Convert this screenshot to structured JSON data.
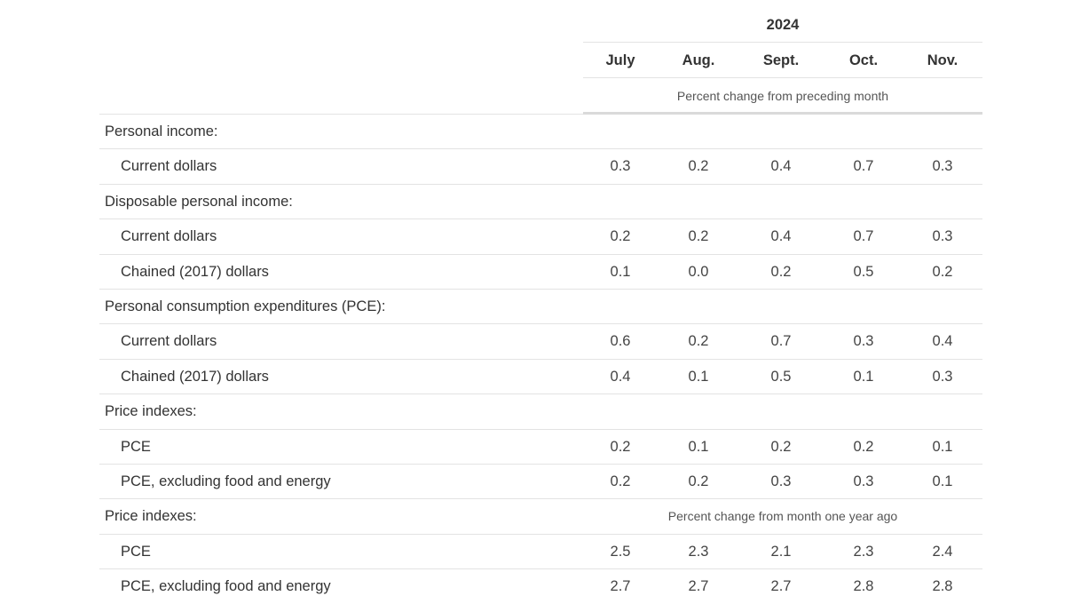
{
  "header": {
    "year": "2024",
    "months": [
      "July",
      "Aug.",
      "Sept.",
      "Oct.",
      "Nov."
    ],
    "note_monthly": "Percent change from preceding month",
    "note_yoy": "Percent change from month one year ago"
  },
  "rows": [
    {
      "label": "Personal income:",
      "values": []
    },
    {
      "label": "Current dollars",
      "values": [
        "0.3",
        "0.2",
        "0.4",
        "0.7",
        "0.3"
      ]
    },
    {
      "label": "Disposable personal income:",
      "values": []
    },
    {
      "label": "Current dollars",
      "values": [
        "0.2",
        "0.2",
        "0.4",
        "0.7",
        "0.3"
      ]
    },
    {
      "label": "Chained (2017) dollars",
      "values": [
        "0.1",
        "0.0",
        "0.2",
        "0.5",
        "0.2"
      ]
    },
    {
      "label": "Personal consumption expenditures (PCE):",
      "values": []
    },
    {
      "label": "Current dollars",
      "values": [
        "0.6",
        "0.2",
        "0.7",
        "0.3",
        "0.4"
      ]
    },
    {
      "label": "Chained (2017) dollars",
      "values": [
        "0.4",
        "0.1",
        "0.5",
        "0.1",
        "0.3"
      ]
    },
    {
      "label": "Price indexes:",
      "values": []
    },
    {
      "label": "PCE",
      "values": [
        "0.2",
        "0.1",
        "0.2",
        "0.2",
        "0.1"
      ]
    },
    {
      "label": "PCE, excluding food and energy",
      "values": [
        "0.2",
        "0.2",
        "0.3",
        "0.3",
        "0.1"
      ]
    },
    {
      "label": "Price indexes:",
      "values": []
    },
    {
      "label": "PCE",
      "values": [
        "2.5",
        "2.3",
        "2.1",
        "2.3",
        "2.4"
      ]
    },
    {
      "label": "PCE, excluding food and energy",
      "values": [
        "2.7",
        "2.7",
        "2.7",
        "2.8",
        "2.8"
      ]
    }
  ]
}
